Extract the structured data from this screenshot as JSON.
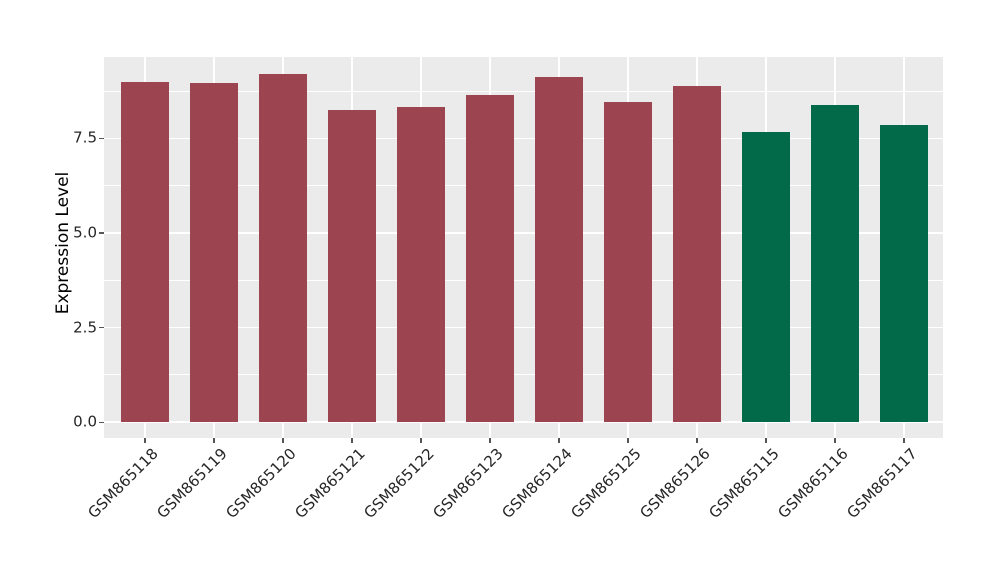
{
  "chart_data": {
    "type": "bar",
    "title": "",
    "xlabel": "",
    "ylabel": "Expression Level",
    "categories": [
      "GSM865118",
      "GSM865119",
      "GSM865120",
      "GSM865121",
      "GSM865122",
      "GSM865123",
      "GSM865124",
      "GSM865125",
      "GSM865126",
      "GSM865115",
      "GSM865116",
      "GSM865117"
    ],
    "values": [
      9.0,
      8.97,
      9.21,
      8.25,
      8.33,
      8.64,
      9.12,
      8.47,
      8.88,
      7.66,
      8.39,
      7.84
    ],
    "bar_colors": [
      "#9D4451",
      "#9D4451",
      "#9D4451",
      "#9D4451",
      "#9D4451",
      "#9D4451",
      "#9D4451",
      "#9D4451",
      "#9D4451",
      "#026949",
      "#026949",
      "#026949"
    ],
    "group_colors": {
      "red_group": "#9D4451",
      "green_group": "#026949"
    },
    "y_ticks": [
      0,
      2.5,
      5,
      7.5
    ],
    "y_tick_labels": [
      "0.0",
      "2.5",
      "5.0",
      "7.5"
    ],
    "y_minor_gridlines": [
      1.25,
      3.75,
      6.25,
      8.75
    ],
    "ylim": [
      -0.42,
      9.65
    ],
    "grid": true,
    "legend": "none",
    "panel_bg": "#EBEBEB",
    "grid_color": "#FFFFFF",
    "tick_label_color": "#262626",
    "tick_mark_color": "#555555"
  }
}
